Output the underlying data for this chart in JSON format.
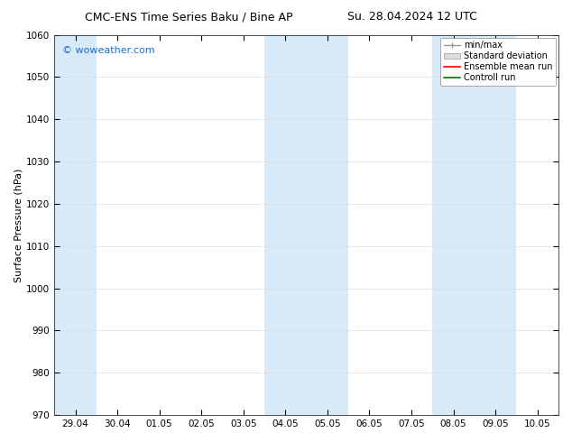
{
  "title_left": "CMC-ENS Time Series Baku / Bine AP",
  "title_right": "Su. 28.04.2024 12 UTC",
  "ylabel": "Surface Pressure (hPa)",
  "ylim": [
    970,
    1060
  ],
  "yticks": [
    970,
    980,
    990,
    1000,
    1010,
    1020,
    1030,
    1040,
    1050,
    1060
  ],
  "xtick_labels": [
    "29.04",
    "30.04",
    "01.05",
    "02.05",
    "03.05",
    "04.05",
    "05.05",
    "06.05",
    "07.05",
    "08.05",
    "09.05",
    "10.05"
  ],
  "background_color": "#ffffff",
  "plot_bg_color": "#ffffff",
  "shade_color": "#d8eaf8",
  "legend_labels": [
    "min/max",
    "Standard deviation",
    "Ensemble mean run",
    "Controll run"
  ],
  "legend_line_colors": [
    "#999999",
    "#cccccc",
    "#ff0000",
    "#007700"
  ],
  "watermark": "© woweather.com",
  "watermark_color": "#1a6fcc",
  "title_fontsize": 9,
  "axis_label_fontsize": 8,
  "tick_fontsize": 7.5,
  "legend_fontsize": 7
}
